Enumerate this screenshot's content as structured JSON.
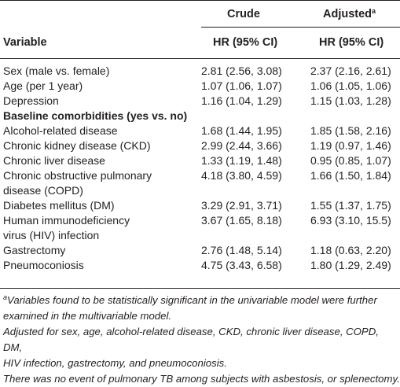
{
  "header": {
    "crude": "Crude",
    "adjusted": "Adjusted",
    "adjusted_sup": "a",
    "variable": "Variable",
    "hr_crude": "HR (95% CI)",
    "hr_adjusted": "HR (95% CI)"
  },
  "rows": [
    {
      "variable": "Sex (male vs. female)",
      "crude": "2.81 (2.56, 3.08)",
      "adjusted": "2.37 (2.16, 2.61)"
    },
    {
      "variable": "Age (per 1 year)",
      "crude": "1.07 (1.06, 1.07)",
      "adjusted": "1.06 (1.05, 1.06)"
    },
    {
      "variable": "Depression",
      "crude": "1.16 (1.04, 1.29)",
      "adjusted": "1.15 (1.03, 1.28)"
    },
    {
      "variable": "Baseline comorbidities (yes vs. no)",
      "crude": "",
      "adjusted": ""
    },
    {
      "variable": "Alcohol-related disease",
      "crude": "1.68 (1.44, 1.95)",
      "adjusted": "1.85 (1.58, 2.16)"
    },
    {
      "variable": "Chronic kidney disease (CKD)",
      "crude": "2.99 (2.44, 3.66)",
      "adjusted": "1.19 (0.97, 1.46)"
    },
    {
      "variable": "Chronic liver disease",
      "crude": "1.33 (1.19, 1.48)",
      "adjusted": "0.95 (0.85, 1.07)"
    },
    {
      "variable": "Chronic obstructive pulmonary",
      "variable2": "disease (COPD)",
      "crude": "4.18 (3.80, 4.59)",
      "adjusted": "1.66 (1.50, 1.84)"
    },
    {
      "variable": "Diabetes mellitus (DM)",
      "crude": "3.29 (2.91, 3.71)",
      "adjusted": "1.55 (1.37, 1.75)"
    },
    {
      "variable": "Human immunodeficiency",
      "variable2": "virus (HIV) infection",
      "crude": "3.67 (1.65, 8.18)",
      "adjusted": "6.93 (3.10, 15.5)"
    },
    {
      "variable": "Gastrectomy",
      "crude": "2.76 (1.48, 5.14)",
      "adjusted": "1.18 (0.63, 2.20)"
    },
    {
      "variable": "Pneumoconiosis",
      "crude": "4.75 (3.43, 6.58)",
      "adjusted": "1.80 (1.29, 2.49)"
    }
  ],
  "footnotes": {
    "a_sup": "a",
    "a_line1": "Variables found to be statistically significant in the univariable model were further",
    "a_line2": "examined in the multivariable model.",
    "adjusted_line1": "Adjusted for sex, age, alcohol-related disease, CKD, chronic liver disease, COPD, DM,",
    "adjusted_line2": "HIV infection, gastrectomy, and pneumoconiosis.",
    "no_event": "There was no event of pulmonary TB among subjects with asbestosis, or splenectomy."
  }
}
